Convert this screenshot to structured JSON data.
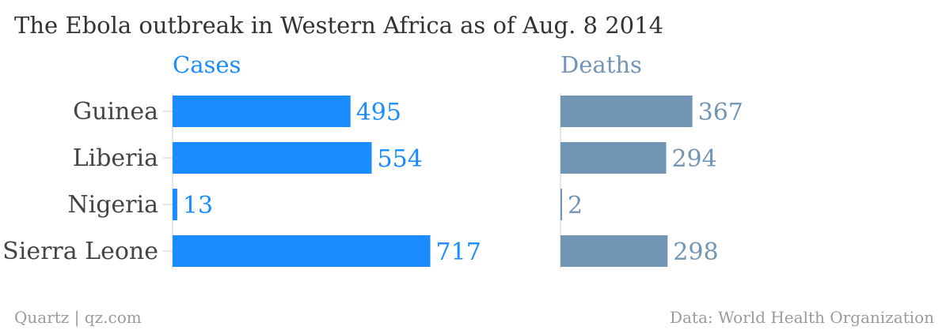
{
  "chart_data": {
    "type": "bar",
    "orientation": "horizontal",
    "title": "The Ebola outbreak in Western Africa as of Aug. 8 2014",
    "categories": [
      "Guinea",
      "Liberia",
      "Nigeria",
      "Sierra Leone"
    ],
    "series": [
      {
        "name": "Cases",
        "values": [
          495,
          554,
          13,
          717
        ],
        "color": "#1a8cff"
      },
      {
        "name": "Deaths",
        "values": [
          367,
          294,
          2,
          298
        ],
        "color": "#7395b5"
      }
    ],
    "layout": "small-multiples",
    "grid": false
  },
  "footer": {
    "source_left": "Quartz | qz.com",
    "source_right": "Data: World Health Organization"
  }
}
